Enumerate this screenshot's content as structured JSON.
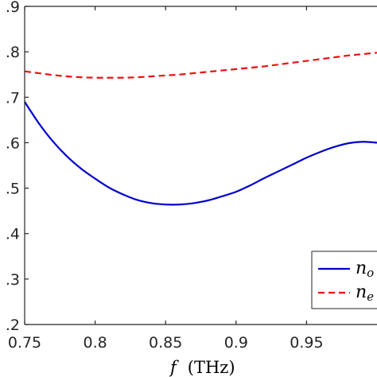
{
  "chart_data": {
    "type": "line",
    "title": "",
    "xlabel": {
      "symbol": "f",
      "unit": "(THz)"
    },
    "ylabel": "",
    "xlim": [
      0.75,
      1.0
    ],
    "ylim": [
      0.2,
      0.9
    ],
    "x_ticks": [
      {
        "value": 0.75,
        "label": "0.75"
      },
      {
        "value": 0.8,
        "label": "0.8"
      },
      {
        "value": 0.85,
        "label": "0.85"
      },
      {
        "value": 0.9,
        "label": "0.9"
      },
      {
        "value": 0.95,
        "label": "0.95"
      }
    ],
    "y_ticks": [
      {
        "value": 0.2,
        "label": ".2"
      },
      {
        "value": 0.3,
        "label": ".3"
      },
      {
        "value": 0.4,
        "label": ".4"
      },
      {
        "value": 0.5,
        "label": ".5"
      },
      {
        "value": 0.6,
        "label": ".6"
      },
      {
        "value": 0.7,
        "label": ".7"
      },
      {
        "value": 0.8,
        "label": ".8"
      },
      {
        "value": 0.9,
        "label": ".9"
      }
    ],
    "grid": false,
    "legend_placement": "bottom-right",
    "series": [
      {
        "name": "n",
        "name_sub": "o",
        "color": "#0000cc",
        "style": "solid",
        "x": [
          0.75,
          0.76,
          0.77,
          0.78,
          0.79,
          0.8,
          0.81,
          0.82,
          0.83,
          0.84,
          0.85,
          0.86,
          0.87,
          0.88,
          0.89,
          0.9,
          0.91,
          0.92,
          0.93,
          0.94,
          0.95,
          0.96,
          0.97,
          0.98,
          0.99,
          1.0
        ],
        "y": [
          0.69,
          0.643,
          0.603,
          0.57,
          0.543,
          0.521,
          0.501,
          0.486,
          0.474,
          0.467,
          0.464,
          0.464,
          0.467,
          0.473,
          0.482,
          0.492,
          0.506,
          0.522,
          0.537,
          0.552,
          0.567,
          0.58,
          0.591,
          0.599,
          0.602,
          0.6
        ]
      },
      {
        "name": "n",
        "name_sub": "e",
        "color": "#ee1111",
        "style": "dashed",
        "x": [
          0.75,
          0.76,
          0.77,
          0.78,
          0.79,
          0.8,
          0.81,
          0.82,
          0.83,
          0.84,
          0.85,
          0.86,
          0.87,
          0.88,
          0.89,
          0.9,
          0.91,
          0.92,
          0.93,
          0.94,
          0.95,
          0.96,
          0.97,
          0.98,
          0.99,
          1.0
        ],
        "y": [
          0.757,
          0.753,
          0.749,
          0.746,
          0.744,
          0.743,
          0.743,
          0.743,
          0.744,
          0.746,
          0.748,
          0.75,
          0.753,
          0.756,
          0.759,
          0.762,
          0.765,
          0.768,
          0.772,
          0.776,
          0.78,
          0.784,
          0.788,
          0.792,
          0.795,
          0.798
        ]
      }
    ]
  }
}
